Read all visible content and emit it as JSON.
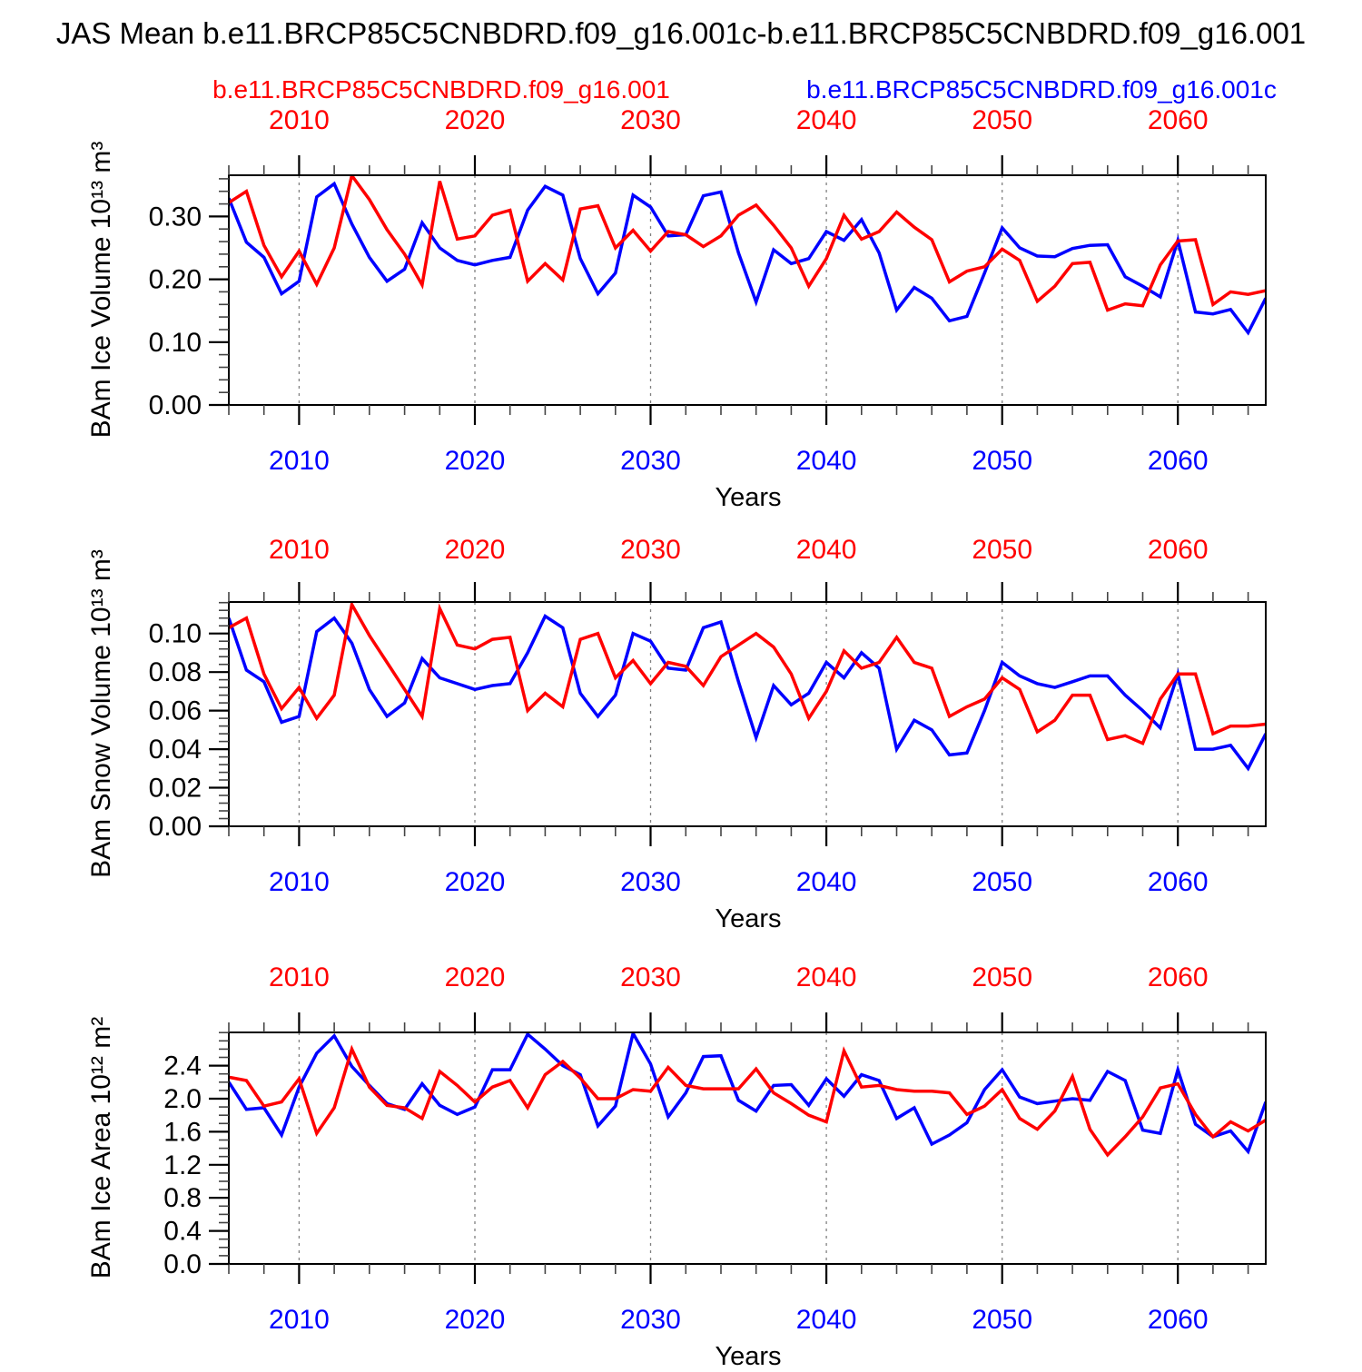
{
  "title": "JAS Mean b.e11.BRCP85C5CNBDRD.f09_g16.001c-b.e11.BRCP85C5CNBDRD.f09_g16.001",
  "legend": {
    "red_label": "b.e11.BRCP85C5CNBDRD.f09_g16.001",
    "blue_label": "b.e11.BRCP85C5CNBDRD.f09_g16.001c"
  },
  "colors": {
    "red_series": "#ff0000",
    "blue_series": "#0000ff",
    "gridline": "#808080",
    "axis": "#000000"
  },
  "x_axis": {
    "label": "Years",
    "decade_tick_values": [
      2010,
      2020,
      2030,
      2040,
      2050,
      2060
    ],
    "decade_tick_labels": [
      "2010",
      "2020",
      "2030",
      "2040",
      "2050",
      "2060"
    ],
    "minor_step_years": 2,
    "range": [
      2006,
      2065
    ]
  },
  "chart_data": {
    "type": "line",
    "x_years": [
      2006,
      2007,
      2008,
      2009,
      2010,
      2011,
      2012,
      2013,
      2014,
      2015,
      2016,
      2017,
      2018,
      2019,
      2020,
      2021,
      2022,
      2023,
      2024,
      2025,
      2026,
      2027,
      2028,
      2029,
      2030,
      2031,
      2032,
      2033,
      2034,
      2035,
      2036,
      2037,
      2038,
      2039,
      2040,
      2041,
      2042,
      2043,
      2044,
      2045,
      2046,
      2047,
      2048,
      2049,
      2050,
      2051,
      2052,
      2053,
      2054,
      2055,
      2056,
      2057,
      2058,
      2059,
      2060,
      2061,
      2062,
      2063,
      2064,
      2065
    ],
    "grid": "dashed-vertical-at-decades",
    "legend_position": "top",
    "panels": [
      {
        "name": "ice_volume",
        "ylabel": "BAm Ice Volume 10¹³ m³",
        "ylim": [
          0,
          0.3656
        ],
        "ytick_values": [
          0.0,
          0.1,
          0.2,
          0.3
        ],
        "ytick_labels": [
          "0.00",
          "0.10",
          "0.20",
          "0.30"
        ],
        "y_minor_step": 0.02,
        "series": [
          {
            "name": "b.e11.BRCP85C5CNBDRD.f09_g16.001",
            "color": "red",
            "values": [
              0.322,
              0.34,
              0.254,
              0.204,
              0.245,
              0.192,
              0.25,
              0.365,
              0.327,
              0.279,
              0.24,
              0.191,
              0.356,
              0.264,
              0.269,
              0.302,
              0.31,
              0.197,
              0.225,
              0.199,
              0.312,
              0.317,
              0.25,
              0.278,
              0.245,
              0.276,
              0.271,
              0.252,
              0.269,
              0.302,
              0.318,
              0.286,
              0.25,
              0.189,
              0.233,
              0.302,
              0.264,
              0.276,
              0.307,
              0.283,
              0.263,
              0.196,
              0.213,
              0.22,
              0.248,
              0.23,
              0.165,
              0.189,
              0.225,
              0.227,
              0.151,
              0.161,
              0.158,
              0.223,
              0.261,
              0.263,
              0.16,
              0.18,
              0.176,
              0.182
            ]
          },
          {
            "name": "b.e11.BRCP85C5CNBDRD.f09_g16.001c",
            "color": "blue",
            "values": [
              0.329,
              0.259,
              0.235,
              0.177,
              0.197,
              0.331,
              0.352,
              0.288,
              0.235,
              0.197,
              0.216,
              0.29,
              0.25,
              0.23,
              0.223,
              0.23,
              0.235,
              0.31,
              0.348,
              0.334,
              0.233,
              0.177,
              0.21,
              0.334,
              0.315,
              0.269,
              0.271,
              0.333,
              0.339,
              0.242,
              0.164,
              0.247,
              0.225,
              0.233,
              0.276,
              0.262,
              0.295,
              0.242,
              0.151,
              0.187,
              0.17,
              0.134,
              0.141,
              0.21,
              0.282,
              0.25,
              0.237,
              0.236,
              0.249,
              0.254,
              0.255,
              0.204,
              0.189,
              0.172,
              0.262,
              0.148,
              0.145,
              0.152,
              0.115,
              0.17
            ]
          }
        ]
      },
      {
        "name": "snow_volume",
        "ylabel": "BAm Snow Volume 10¹³ m³",
        "ylim": [
          0,
          0.11634
        ],
        "ytick_values": [
          0.0,
          0.02,
          0.04,
          0.06,
          0.08,
          0.1
        ],
        "ytick_labels": [
          "0.00",
          "0.02",
          "0.04",
          "0.06",
          "0.08",
          "0.10"
        ],
        "y_minor_step": 0.004,
        "series": [
          {
            "name": "b.e11.BRCP85C5CNBDRD.f09_g16.001",
            "color": "red",
            "values": [
              0.103,
              0.108,
              0.079,
              0.061,
              0.072,
              0.056,
              0.068,
              0.115,
              0.099,
              0.085,
              0.071,
              0.057,
              0.113,
              0.094,
              0.092,
              0.097,
              0.098,
              0.06,
              0.069,
              0.062,
              0.097,
              0.1,
              0.077,
              0.086,
              0.074,
              0.085,
              0.083,
              0.073,
              0.088,
              0.094,
              0.1,
              0.093,
              0.079,
              0.056,
              0.07,
              0.091,
              0.082,
              0.085,
              0.098,
              0.085,
              0.082,
              0.057,
              0.062,
              0.066,
              0.077,
              0.071,
              0.049,
              0.055,
              0.068,
              0.068,
              0.045,
              0.047,
              0.043,
              0.066,
              0.079,
              0.079,
              0.048,
              0.052,
              0.052,
              0.053
            ]
          },
          {
            "name": "b.e11.BRCP85C5CNBDRD.f09_g16.001c",
            "color": "blue",
            "values": [
              0.108,
              0.081,
              0.075,
              0.054,
              0.057,
              0.101,
              0.108,
              0.095,
              0.071,
              0.057,
              0.064,
              0.087,
              0.077,
              0.074,
              0.071,
              0.073,
              0.074,
              0.09,
              0.109,
              0.103,
              0.069,
              0.057,
              0.068,
              0.1,
              0.096,
              0.082,
              0.081,
              0.103,
              0.106,
              0.075,
              0.046,
              0.073,
              0.063,
              0.069,
              0.085,
              0.077,
              0.09,
              0.082,
              0.04,
              0.055,
              0.05,
              0.037,
              0.038,
              0.06,
              0.085,
              0.078,
              0.074,
              0.072,
              0.075,
              0.078,
              0.078,
              0.068,
              0.06,
              0.051,
              0.079,
              0.04,
              0.04,
              0.042,
              0.03,
              0.048
            ]
          }
        ]
      },
      {
        "name": "ice_area",
        "ylabel": "BAm Ice Area 10¹² m²",
        "ylim": [
          0,
          2.802
        ],
        "ytick_values": [
          0.0,
          0.4,
          0.8,
          1.2,
          1.6,
          2.0,
          2.4
        ],
        "ytick_labels": [
          "0.0",
          "0.4",
          "0.8",
          "1.2",
          "1.6",
          "2.0",
          "2.4"
        ],
        "y_minor_step": 0.1,
        "series": [
          {
            "name": "b.e11.BRCP85C5CNBDRD.f09_g16.001",
            "color": "red",
            "values": [
              2.26,
              2.22,
              1.91,
              1.96,
              2.24,
              1.58,
              1.89,
              2.6,
              2.14,
              1.92,
              1.89,
              1.76,
              2.33,
              2.16,
              1.96,
              2.14,
              2.22,
              1.89,
              2.29,
              2.45,
              2.25,
              2.0,
              2.0,
              2.11,
              2.09,
              2.38,
              2.16,
              2.12,
              2.12,
              2.12,
              2.36,
              2.07,
              1.94,
              1.8,
              1.72,
              2.58,
              2.14,
              2.16,
              2.11,
              2.09,
              2.09,
              2.07,
              1.81,
              1.91,
              2.11,
              1.76,
              1.63,
              1.85,
              2.27,
              1.63,
              1.32,
              1.54,
              1.78,
              2.13,
              2.18,
              1.81,
              1.54,
              1.72,
              1.61,
              1.74
            ]
          },
          {
            "name": "b.e11.BRCP85C5CNBDRD.f09_g16.001c",
            "color": "blue",
            "values": [
              2.2,
              1.87,
              1.89,
              1.56,
              2.14,
              2.55,
              2.76,
              2.39,
              2.16,
              1.94,
              1.87,
              2.18,
              1.92,
              1.81,
              1.9,
              2.35,
              2.35,
              2.78,
              2.6,
              2.4,
              2.29,
              1.67,
              1.91,
              2.79,
              2.42,
              1.78,
              2.07,
              2.51,
              2.52,
              1.98,
              1.85,
              2.16,
              2.17,
              1.92,
              2.24,
              2.03,
              2.29,
              2.22,
              1.76,
              1.89,
              1.45,
              1.56,
              1.71,
              2.11,
              2.35,
              2.02,
              1.94,
              1.97,
              2.0,
              1.98,
              2.33,
              2.22,
              1.62,
              1.58,
              2.35,
              1.69,
              1.54,
              1.61,
              1.36,
              1.96
            ]
          }
        ]
      }
    ]
  }
}
